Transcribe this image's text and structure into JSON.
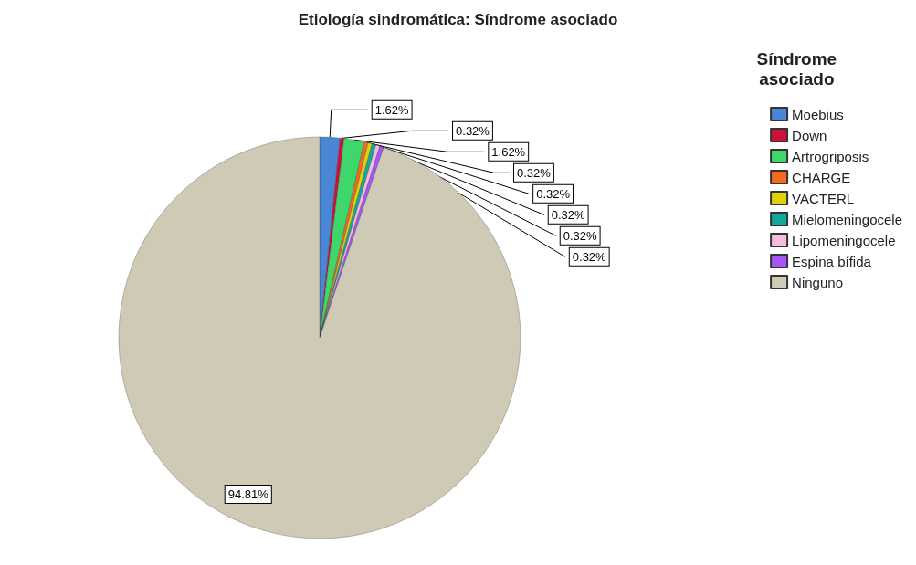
{
  "chart_data": {
    "type": "pie",
    "title": "Etiología sindromática: Síndrome asociado",
    "legend_title": "Síndrome asociado",
    "categories": [
      "Moebius",
      "Down",
      "Artrogriposis",
      "CHARGE",
      "VACTERL",
      "Mielomeningocele",
      "Lipomeningocele",
      "Espina bífida",
      "Ninguno"
    ],
    "values": [
      1.62,
      0.32,
      1.62,
      0.32,
      0.32,
      0.32,
      0.32,
      0.32,
      94.81
    ],
    "colors": [
      "#4a86d6",
      "#d0103a",
      "#3fd66b",
      "#f36b21",
      "#e0d20a",
      "#13a89a",
      "#f6bce0",
      "#a855f7",
      "#cfcab5"
    ],
    "value_labels": [
      "1.62%",
      "0.32%",
      "1.62%",
      "0.32%",
      "0.32%",
      "0.32%",
      "0.32%",
      "0.32%",
      "94.81%"
    ],
    "legend": "right"
  }
}
